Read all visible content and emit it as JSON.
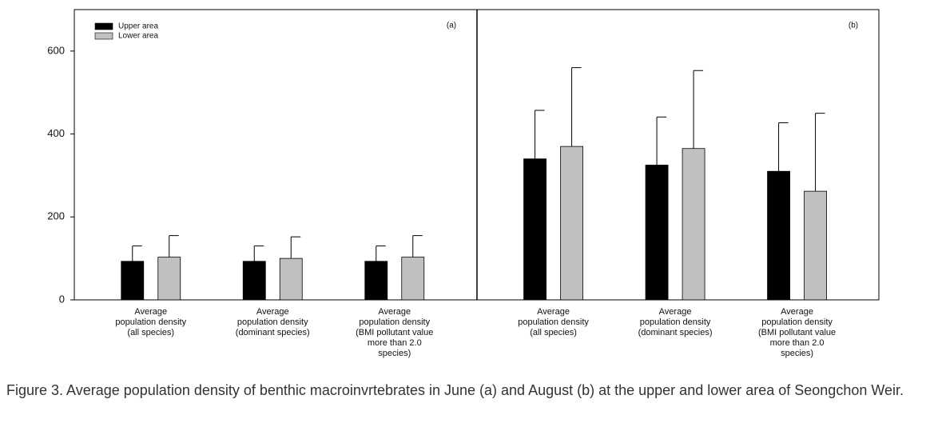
{
  "chart_data": [
    {
      "type": "bar",
      "label": "(a)",
      "categories": [
        "Average\npopulation density\n(all species)",
        "Average\npopulation density\n(dominant species)",
        "Average\npopulation density\n(BMI pollutant value\nmore than 2.0\nspecies)"
      ],
      "series": [
        {
          "name": "Upper area",
          "color": "#000000",
          "values": [
            93,
            93,
            93
          ],
          "errors": [
            37,
            37,
            37
          ]
        },
        {
          "name": "Lower area",
          "color": "#c0c0c0",
          "values": [
            103,
            100,
            103
          ],
          "errors": [
            52,
            52,
            52
          ]
        }
      ],
      "ylim": [
        0,
        700
      ],
      "yticks": [
        0,
        200,
        400,
        600
      ],
      "legend": "upper-left"
    },
    {
      "type": "bar",
      "label": "(b)",
      "categories": [
        "Average\npopulation density\n(all species)",
        "Average\npopulation density\n(dominant species)",
        "Average\npopulation density\n(BMI pollutant value\nmore than 2.0\nspecies)"
      ],
      "series": [
        {
          "color": "#000000",
          "values": [
            340,
            325,
            310
          ],
          "errors": [
            117,
            116,
            117
          ]
        },
        {
          "color": "#c0c0c0",
          "values": [
            370,
            365,
            262
          ],
          "errors": [
            190,
            188,
            188
          ]
        }
      ],
      "ylim": [
        0,
        700
      ]
    }
  ],
  "caption": "Figure 3.  Average population density of benthic macroinvrtebrates in June (a) and August (b) at the upper and lower area of Seongchon Weir."
}
